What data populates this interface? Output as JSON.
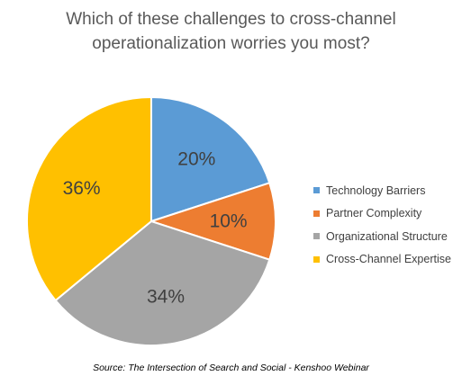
{
  "chart_data": {
    "type": "pie",
    "title_line1": "Which of these challenges to cross-channel",
    "title_line2": "operationalization worries you most?",
    "slices": [
      {
        "name": "Technology Barriers",
        "value": 20,
        "label": "20%",
        "color": "#5B9BD5"
      },
      {
        "name": "Partner Complexity",
        "value": 10,
        "label": "10%",
        "color": "#ED7D31"
      },
      {
        "name": "Organizational Structure",
        "value": 34,
        "label": "34%",
        "color": "#A5A5A5"
      },
      {
        "name": "Cross-Channel Expertise",
        "value": 36,
        "label": "36%",
        "color": "#FFC000"
      }
    ],
    "legend_position": "right",
    "source": "Source: The Intersection of Search and Social - Kenshoo Webinar"
  }
}
